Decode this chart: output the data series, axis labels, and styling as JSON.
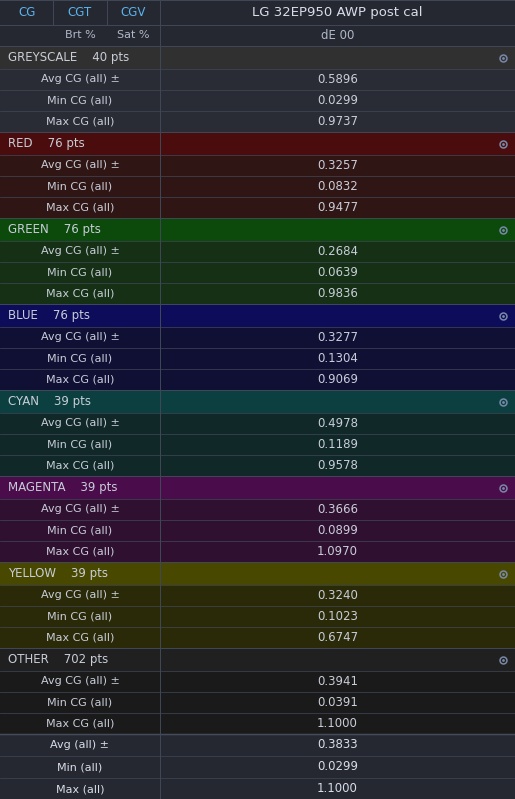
{
  "title": "LG 32EP950 AWP post cal",
  "background": "#252830",
  "header_bg": "#252830",
  "header_text_color": "#5ab4f0",
  "sub_header_text_color": "#b0b8c8",
  "title_text_color": "#d8dde8",
  "divider_color": "#404858",
  "eye_icon_color": "#7888a8",
  "sections": [
    {
      "name": "GREYSCALE",
      "pts": "40 pts",
      "header_bg": "#303030",
      "row_bg": "#2a2c35",
      "text_color": "#c8cdd8",
      "header_text_color": "#c8cdd8",
      "rows": [
        {
          "label": "Avg CG (all) ±",
          "value": "0.5896"
        },
        {
          "label": "Min CG (all)",
          "value": "0.0299"
        },
        {
          "label": "Max CG (all)",
          "value": "0.9737"
        }
      ]
    },
    {
      "name": "RED",
      "pts": "76 pts",
      "header_bg": "#4a0c0c",
      "row_bg": "#301515",
      "text_color": "#c8cdd8",
      "header_text_color": "#c8cdd8",
      "rows": [
        {
          "label": "Avg CG (all) ±",
          "value": "0.3257"
        },
        {
          "label": "Min CG (all)",
          "value": "0.0832"
        },
        {
          "label": "Max CG (all)",
          "value": "0.9477"
        }
      ]
    },
    {
      "name": "GREEN",
      "pts": "76 pts",
      "header_bg": "#0c4a0c",
      "row_bg": "#153015",
      "text_color": "#c8cdd8",
      "header_text_color": "#c8cdd8",
      "rows": [
        {
          "label": "Avg CG (all) ±",
          "value": "0.2684"
        },
        {
          "label": "Min CG (all)",
          "value": "0.0639"
        },
        {
          "label": "Max CG (all)",
          "value": "0.9836"
        }
      ]
    },
    {
      "name": "BLUE",
      "pts": "76 pts",
      "header_bg": "#0c0c5a",
      "row_bg": "#101035",
      "text_color": "#c8cdd8",
      "header_text_color": "#c8cdd8",
      "rows": [
        {
          "label": "Avg CG (all) ±",
          "value": "0.3277"
        },
        {
          "label": "Min CG (all)",
          "value": "0.1304"
        },
        {
          "label": "Max CG (all)",
          "value": "0.9069"
        }
      ]
    },
    {
      "name": "CYAN",
      "pts": "39 pts",
      "header_bg": "#0c4040",
      "row_bg": "#102828",
      "text_color": "#c8cdd8",
      "header_text_color": "#c8cdd8",
      "rows": [
        {
          "label": "Avg CG (all) ±",
          "value": "0.4978"
        },
        {
          "label": "Min CG (all)",
          "value": "0.1189"
        },
        {
          "label": "Max CG (all)",
          "value": "0.9578"
        }
      ]
    },
    {
      "name": "MAGENTA",
      "pts": "39 pts",
      "header_bg": "#4a0c4a",
      "row_bg": "#301030",
      "text_color": "#c8cdd8",
      "header_text_color": "#c8cdd8",
      "rows": [
        {
          "label": "Avg CG (all) ±",
          "value": "0.3666"
        },
        {
          "label": "Min CG (all)",
          "value": "0.0899"
        },
        {
          "label": "Max CG (all)",
          "value": "1.0970"
        }
      ]
    },
    {
      "name": "YELLOW",
      "pts": "39 pts",
      "header_bg": "#484800",
      "row_bg": "#2a2a08",
      "text_color": "#c8cdd8",
      "header_text_color": "#c8cdd8",
      "rows": [
        {
          "label": "Avg CG (all) ±",
          "value": "0.3240"
        },
        {
          "label": "Min CG (all)",
          "value": "0.1023"
        },
        {
          "label": "Max CG (all)",
          "value": "0.6747"
        }
      ]
    },
    {
      "name": "OTHER",
      "pts": "702 pts",
      "header_bg": "#202020",
      "row_bg": "#1a1a1a",
      "text_color": "#c8cdd8",
      "header_text_color": "#c8cdd8",
      "rows": [
        {
          "label": "Avg CG (all) ±",
          "value": "0.3941"
        },
        {
          "label": "Min CG (all)",
          "value": "0.0391"
        },
        {
          "label": "Max CG (all)",
          "value": "1.1000"
        }
      ]
    }
  ],
  "footer_rows": [
    {
      "label": "Avg (all) ±",
      "value": "0.3833"
    },
    {
      "label": "Min (all)",
      "value": "0.0299"
    },
    {
      "label": "Max (all)",
      "value": "1.1000"
    }
  ],
  "footer_bg": "#252830"
}
